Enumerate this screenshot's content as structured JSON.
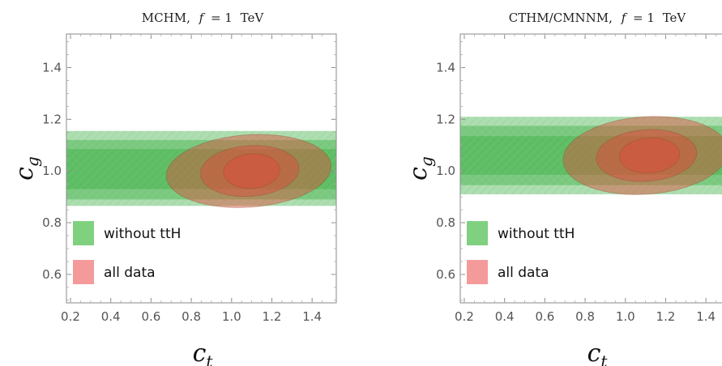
{
  "chart_data": [
    {
      "type": "contour",
      "title": "MCHM,  f = 1 TeV",
      "title_parts": {
        "model": "MCHM,",
        "param": "f",
        "eq": "= 1",
        "unit": "TeV"
      },
      "xlabel": "c",
      "xlabel_sub": "t",
      "ylabel": "c",
      "ylabel_sub": "g",
      "xlim": [
        0.18,
        1.52
      ],
      "ylim": [
        0.49,
        1.53
      ],
      "xticks": [
        "0.2",
        "0.4",
        "0.6",
        "0.8",
        "1.0",
        "1.2",
        "1.4"
      ],
      "xtick_values": [
        0.2,
        0.4,
        0.6,
        0.8,
        1.0,
        1.2,
        1.4
      ],
      "yticks": [
        "0.6",
        "0.8",
        "1.0",
        "1.2",
        "1.4"
      ],
      "ytick_values": [
        0.6,
        0.8,
        1.0,
        1.2,
        1.4
      ],
      "legend": [
        {
          "label": "without ttH",
          "color": "#7fd17f"
        },
        {
          "label": "all data",
          "color": "#f59a9a"
        }
      ],
      "series": [
        {
          "name": "without ttH",
          "color": "#3cb043",
          "bands": [
            {
              "x": [
                0.18,
                1.52
              ],
              "y": [
                0.865,
                1.155
              ]
            },
            {
              "x": [
                0.18,
                1.52
              ],
              "y": [
                0.89,
                1.12
              ]
            },
            {
              "x": [
                0.18,
                1.52
              ],
              "y": [
                0.93,
                1.085
              ]
            }
          ]
        },
        {
          "name": "all data",
          "color": "#e04a3a",
          "ellipses": [
            {
              "center": [
                1.085,
                1.0
              ],
              "rx": 0.41,
              "ry": 0.14,
              "tilt_deg": 4
            },
            {
              "center": [
                1.09,
                1.0
              ],
              "rx": 0.245,
              "ry": 0.098,
              "tilt_deg": 4
            },
            {
              "center": [
                1.1,
                1.0
              ],
              "rx": 0.14,
              "ry": 0.067,
              "tilt_deg": 4
            }
          ]
        }
      ]
    },
    {
      "type": "contour",
      "title": "CTHM/CMNNM,  f = 1 TeV",
      "title_parts": {
        "model": "CTHM/CMNNM,",
        "param": "f",
        "eq": "= 1",
        "unit": "TeV"
      },
      "xlabel": "c",
      "xlabel_sub": "t",
      "ylabel": "c",
      "ylabel_sub": "g",
      "xlim": [
        0.18,
        1.52
      ],
      "ylim": [
        0.49,
        1.53
      ],
      "xticks": [
        "0.2",
        "0.4",
        "0.6",
        "0.8",
        "1.0",
        "1.2",
        "1.4"
      ],
      "xtick_values": [
        0.2,
        0.4,
        0.6,
        0.8,
        1.0,
        1.2,
        1.4
      ],
      "yticks": [
        "0.6",
        "0.8",
        "1.0",
        "1.2",
        "1.4"
      ],
      "ytick_values": [
        0.6,
        0.8,
        1.0,
        1.2,
        1.4
      ],
      "legend": [
        {
          "label": "without ttH",
          "color": "#7fd17f"
        },
        {
          "label": "all data",
          "color": "#f59a9a"
        }
      ],
      "series": [
        {
          "name": "without ttH",
          "color": "#3cb043",
          "bands": [
            {
              "x": [
                0.18,
                1.52
              ],
              "y": [
                0.91,
                1.21
              ]
            },
            {
              "x": [
                0.18,
                1.52
              ],
              "y": [
                0.945,
                1.175
              ]
            },
            {
              "x": [
                0.18,
                1.52
              ],
              "y": [
                0.985,
                1.135
              ]
            }
          ]
        },
        {
          "name": "all data",
          "color": "#e04a3a",
          "ellipses": [
            {
              "center": [
                1.1,
                1.06
              ],
              "rx": 0.41,
              "ry": 0.15,
              "tilt_deg": 4
            },
            {
              "center": [
                1.105,
                1.06
              ],
              "rx": 0.25,
              "ry": 0.1,
              "tilt_deg": 4
            },
            {
              "center": [
                1.12,
                1.06
              ],
              "rx": 0.15,
              "ry": 0.068,
              "tilt_deg": 4
            }
          ]
        }
      ]
    }
  ]
}
